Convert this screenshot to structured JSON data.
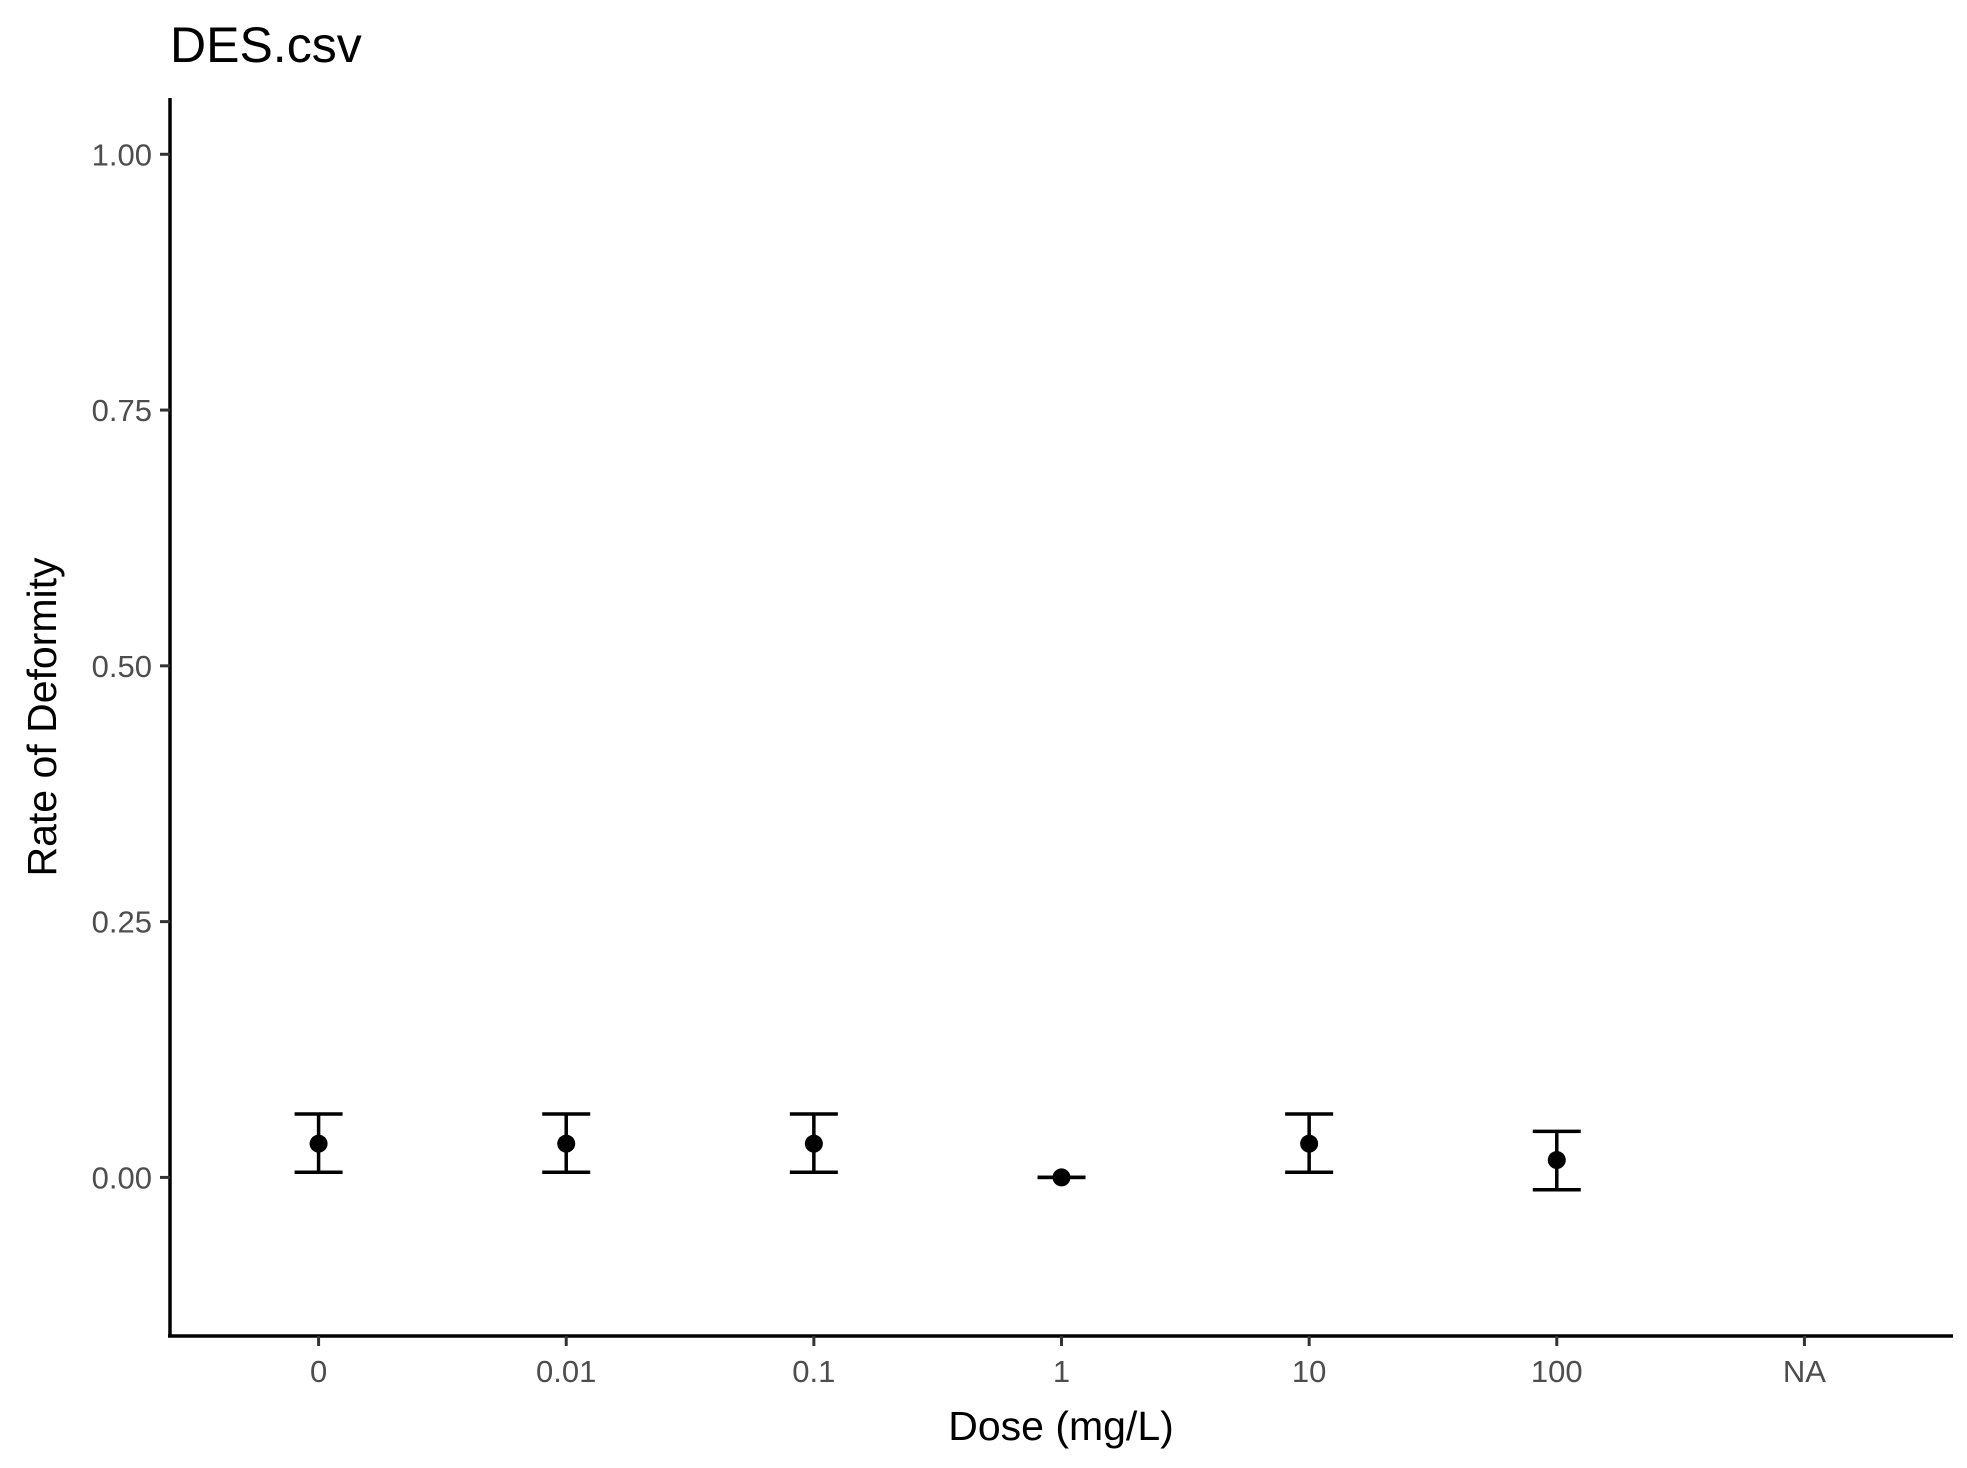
{
  "chart_data": {
    "type": "scatter",
    "title": "DES.csv",
    "xlabel": "Dose (mg/L)",
    "ylabel": "Rate of Deformity",
    "categories": [
      "0",
      "0.01",
      "0.1",
      "1",
      "10",
      "100",
      "NA"
    ],
    "series": [
      {
        "values": [
          0.033,
          0.033,
          0.033,
          0.0,
          0.033,
          0.017,
          null
        ],
        "lower": [
          0.005,
          0.005,
          0.005,
          0.0,
          0.005,
          -0.012,
          null
        ],
        "upper": [
          0.062,
          0.062,
          0.062,
          0.0,
          0.062,
          0.045,
          null
        ]
      }
    ],
    "yticks": [
      0.0,
      0.25,
      0.5,
      0.75,
      1.0
    ],
    "ytick_labels": [
      "0.00",
      "0.25",
      "0.50",
      "0.75",
      "1.00"
    ],
    "ylim": [
      -0.155,
      1.055
    ],
    "grid": false,
    "legend": "none",
    "colors": {
      "points": "#000000",
      "axis": "#000000",
      "tick_text": "#4d4d4d"
    }
  }
}
